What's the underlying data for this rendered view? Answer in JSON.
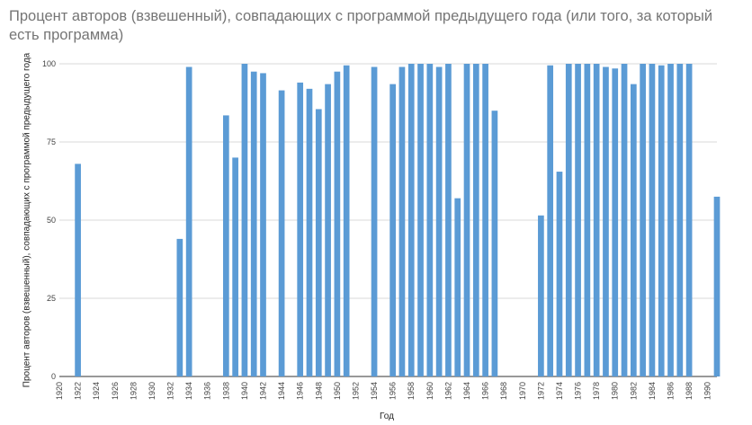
{
  "chart_data": {
    "type": "bar",
    "title": "Процент авторов (взвешенный), совпадающих с программой предыдущего года (или того, за который есть программа)",
    "xlabel": "Год",
    "ylabel": "Процент авторов (взвешенный), совпадающих с программой предыдущего года",
    "ylim": [
      0,
      100
    ],
    "yticks": [
      "0",
      "25",
      "50",
      "75",
      "100"
    ],
    "xlim": [
      1920,
      1991
    ],
    "xticks": [
      "1920",
      "1922",
      "1924",
      "1926",
      "1928",
      "1930",
      "1932",
      "1934",
      "1936",
      "1938",
      "1940",
      "1942",
      "1944",
      "1946",
      "1948",
      "1950",
      "1952",
      "1954",
      "1956",
      "1958",
      "1960",
      "1962",
      "1964",
      "1966",
      "1968",
      "1970",
      "1972",
      "1974",
      "1976",
      "1978",
      "1980",
      "1982",
      "1984",
      "1986",
      "1988",
      "1990"
    ],
    "grid": true,
    "color": "#5b9bd5",
    "x": [
      1922,
      1933,
      1934,
      1938,
      1939,
      1940,
      1941,
      1942,
      1944,
      1946,
      1947,
      1948,
      1949,
      1950,
      1951,
      1954,
      1956,
      1957,
      1958,
      1959,
      1960,
      1961,
      1962,
      1963,
      1964,
      1965,
      1966,
      1967,
      1972,
      1973,
      1974,
      1975,
      1976,
      1977,
      1978,
      1979,
      1980,
      1981,
      1982,
      1983,
      1984,
      1985,
      1986,
      1987,
      1988,
      1991
    ],
    "values": [
      68,
      44,
      99,
      83.5,
      70,
      100,
      97.5,
      97,
      91.5,
      94,
      92,
      85.5,
      93.5,
      97.5,
      99.5,
      99,
      93.5,
      99,
      100,
      100,
      100,
      99,
      100,
      57,
      100,
      100,
      100,
      85,
      51.5,
      99.5,
      65.5,
      100,
      100,
      100,
      100,
      99,
      98.5,
      100,
      93.5,
      100,
      100,
      99.5,
      100,
      100,
      100,
      57.5
    ]
  }
}
